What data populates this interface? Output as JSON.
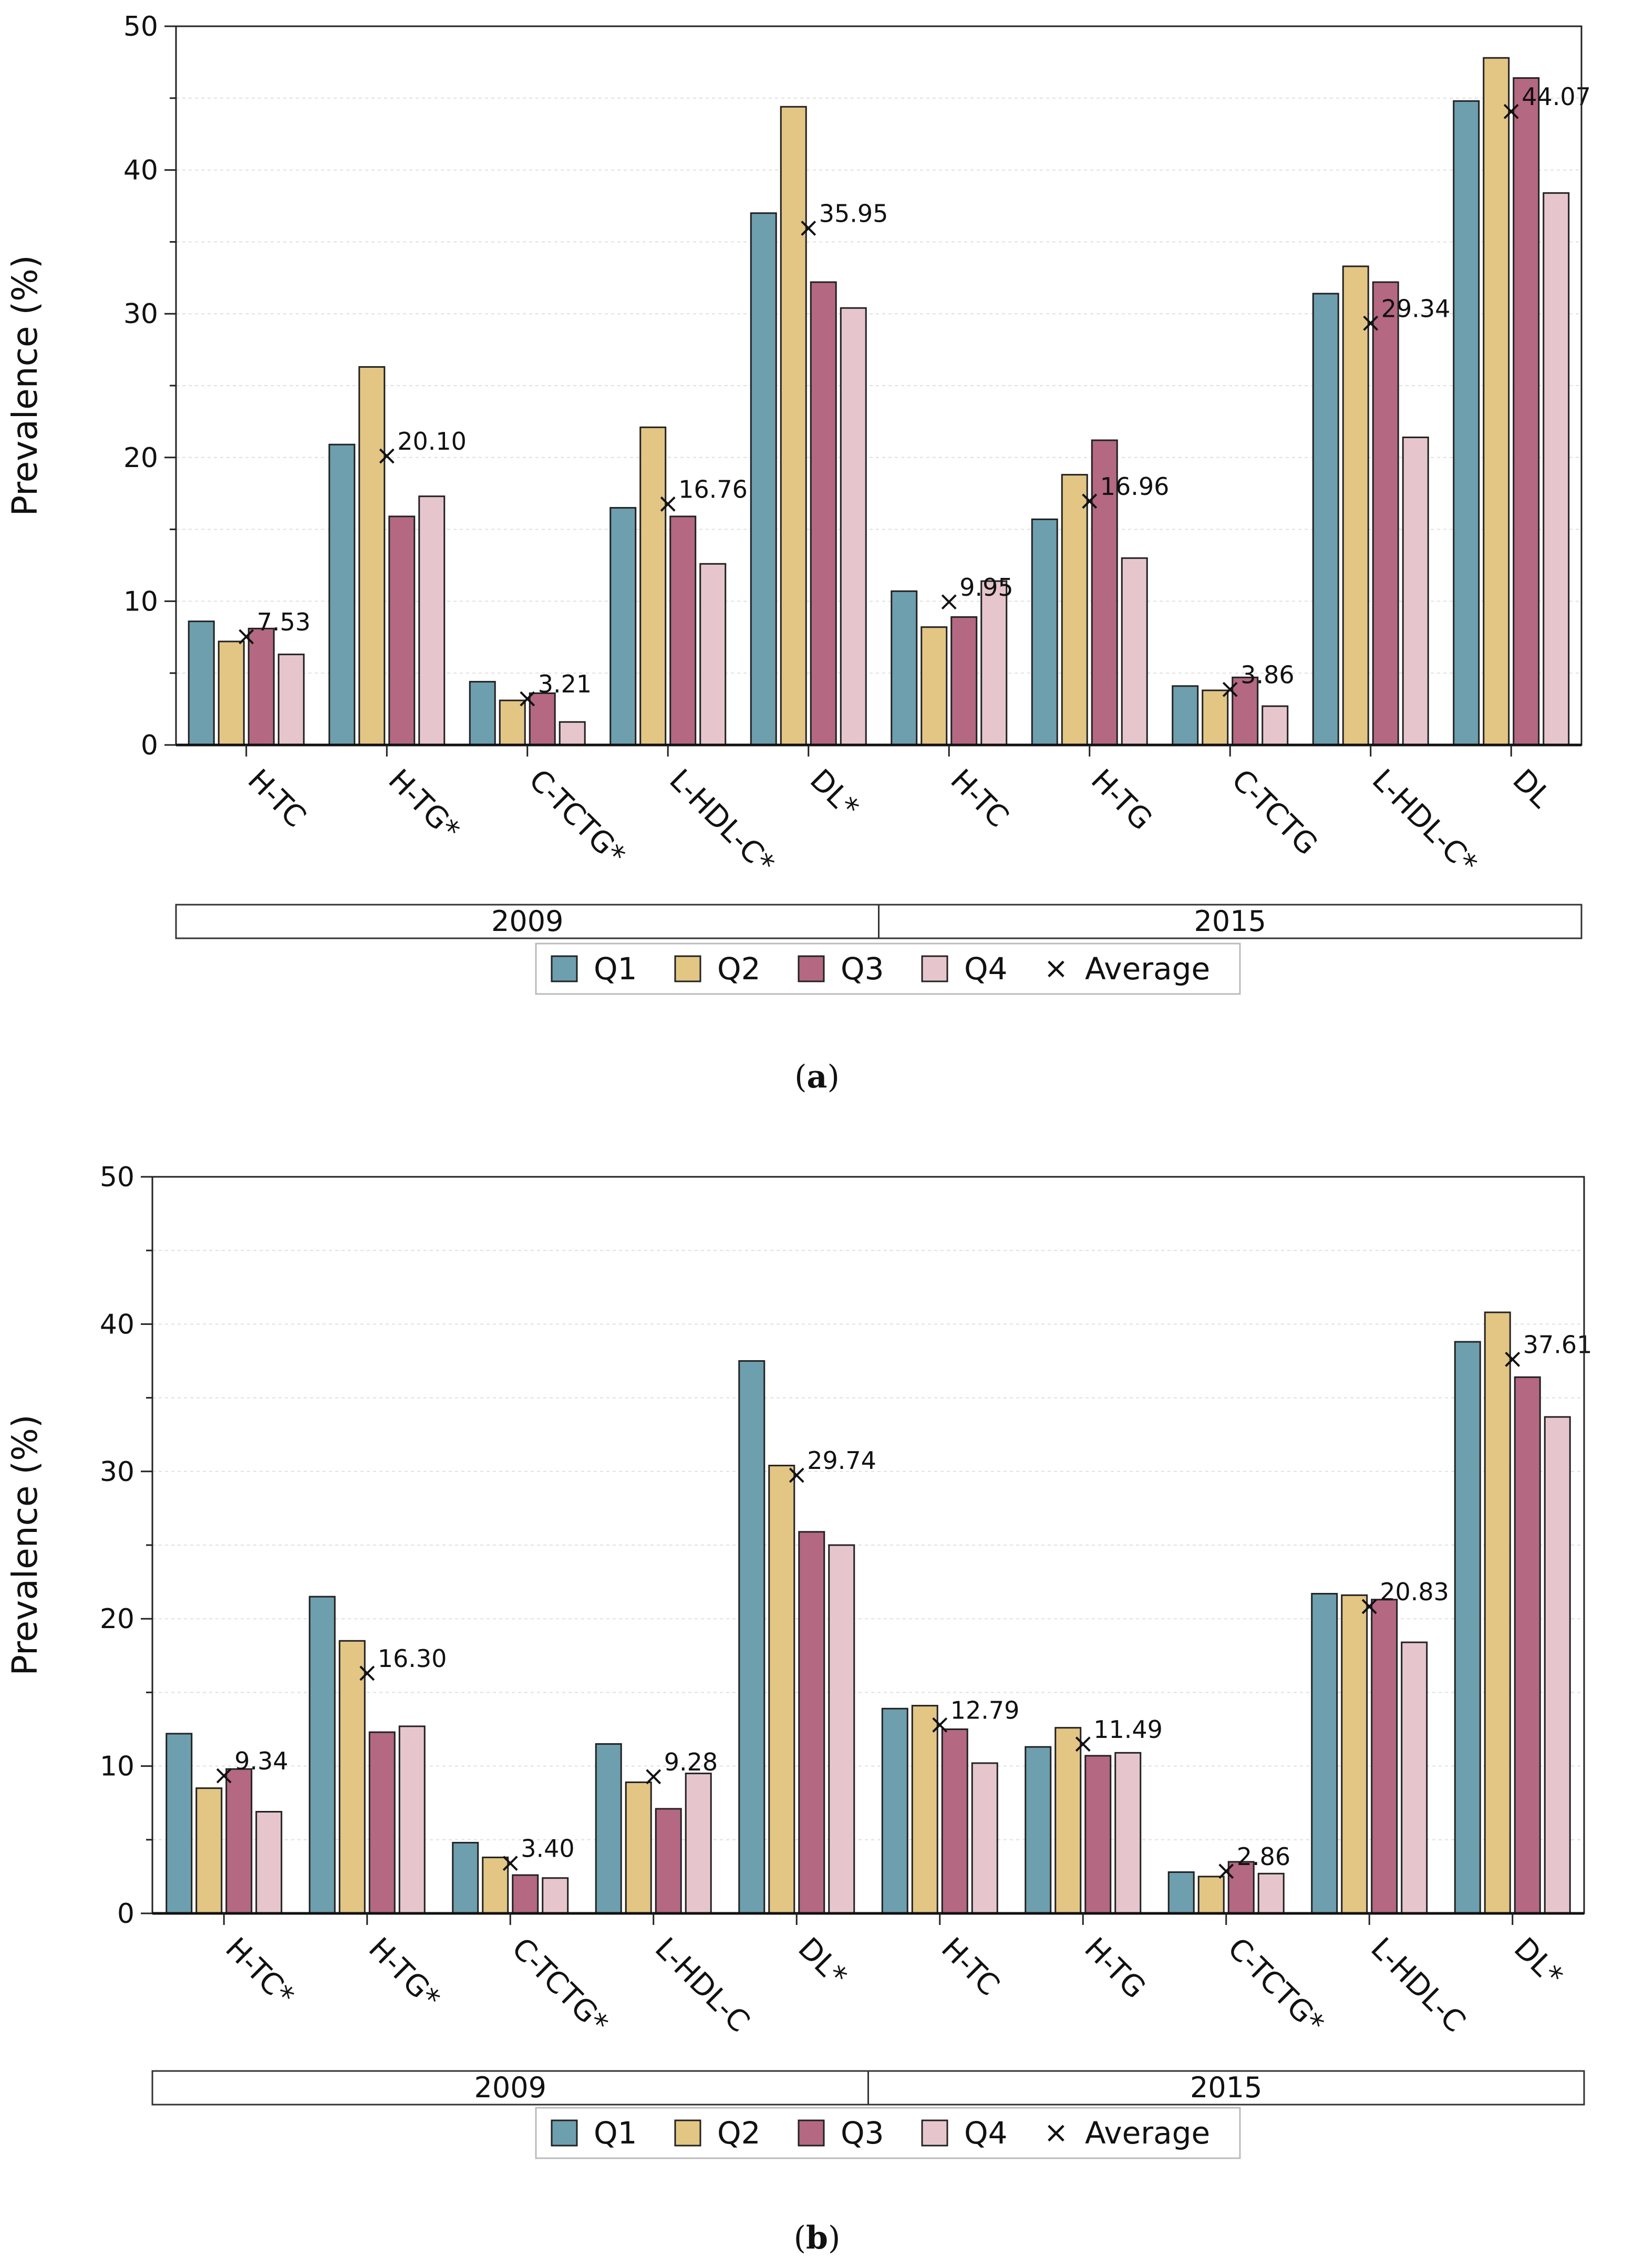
{
  "chart_data": [
    {
      "panel": "a",
      "caption": {
        "open": "(",
        "letter": "a",
        "close": ")"
      },
      "type": "bar",
      "ylabel": "Prevalence (%)",
      "ylim": [
        0,
        50
      ],
      "yticks": [
        "0",
        "10",
        "20",
        "30",
        "40",
        "50"
      ],
      "grid": true,
      "categories": [
        "H-TC",
        "H-TG*",
        "C-TCTG*",
        "L-HDL-C*",
        "DL*",
        "H-TC",
        "H-TG",
        "C-TCTG",
        "L-HDL-C*",
        "DL"
      ],
      "groups": [
        {
          "label": "2009",
          "span": [
            0,
            4
          ]
        },
        {
          "label": "2015",
          "span": [
            5,
            9
          ]
        }
      ],
      "series": [
        {
          "name": "Q1",
          "color": "#6d9fae",
          "values": [
            8.6,
            20.9,
            4.4,
            16.5,
            37.0,
            10.7,
            15.7,
            4.1,
            31.4,
            44.8
          ]
        },
        {
          "name": "Q2",
          "color": "#e3c584",
          "values": [
            7.2,
            26.3,
            3.1,
            22.1,
            44.4,
            8.2,
            18.8,
            3.8,
            33.3,
            47.8
          ]
        },
        {
          "name": "Q3",
          "color": "#b46882",
          "values": [
            8.1,
            15.9,
            3.6,
            15.9,
            32.2,
            8.9,
            21.2,
            4.7,
            32.2,
            46.4
          ]
        },
        {
          "name": "Q4",
          "color": "#e6c6cc",
          "values": [
            6.3,
            17.3,
            1.6,
            12.6,
            30.4,
            11.4,
            13.0,
            2.7,
            21.4,
            38.4
          ]
        }
      ],
      "average": {
        "name": "Average",
        "values": [
          7.53,
          20.1,
          3.21,
          16.76,
          35.95,
          9.95,
          16.96,
          3.86,
          29.34,
          44.07
        ],
        "labels": [
          "7.53",
          "20.10",
          "3.21",
          "16.76",
          "35.95",
          "9.95",
          "16.96",
          "3.86",
          "29.34",
          "44.07"
        ]
      },
      "legend": {
        "position": "bottom",
        "marker_symbol": "×"
      }
    },
    {
      "panel": "b",
      "caption": {
        "open": "(",
        "letter": "b",
        "close": ")"
      },
      "type": "bar",
      "ylabel": "Prevalence (%)",
      "ylim": [
        0,
        50
      ],
      "yticks": [
        "0",
        "10",
        "20",
        "30",
        "40",
        "50"
      ],
      "grid": true,
      "categories": [
        "H-TC*",
        "H-TG*",
        "C-TCTG*",
        "L-HDL-C",
        "DL*",
        "H-TC",
        "H-TG",
        "C-TCTG*",
        "L-HDL-C",
        "DL*"
      ],
      "groups": [
        {
          "label": "2009",
          "span": [
            0,
            4
          ]
        },
        {
          "label": "2015",
          "span": [
            5,
            9
          ]
        }
      ],
      "series": [
        {
          "name": "Q1",
          "color": "#6d9fae",
          "values": [
            12.2,
            21.5,
            4.8,
            11.5,
            37.5,
            13.9,
            11.3,
            2.8,
            21.7,
            38.8
          ]
        },
        {
          "name": "Q2",
          "color": "#e3c584",
          "values": [
            8.5,
            18.5,
            3.8,
            8.9,
            30.4,
            14.1,
            12.6,
            2.5,
            21.6,
            40.8
          ]
        },
        {
          "name": "Q3",
          "color": "#b46882",
          "values": [
            9.8,
            12.3,
            2.6,
            7.1,
            25.9,
            12.5,
            10.7,
            3.5,
            21.3,
            36.4
          ]
        },
        {
          "name": "Q4",
          "color": "#e6c6cc",
          "values": [
            6.9,
            12.7,
            2.4,
            9.5,
            25.0,
            10.2,
            10.9,
            2.7,
            18.4,
            33.7
          ]
        }
      ],
      "average": {
        "name": "Average",
        "values": [
          9.34,
          16.3,
          3.4,
          9.28,
          29.74,
          12.79,
          11.49,
          2.86,
          20.83,
          37.61
        ],
        "labels": [
          "9.34",
          "16.30",
          "3.40",
          "9.28",
          "29.74",
          "12.79",
          "11.49",
          "2.86",
          "20.83",
          "37.61"
        ]
      },
      "legend": {
        "position": "bottom",
        "marker_symbol": "×"
      }
    }
  ]
}
